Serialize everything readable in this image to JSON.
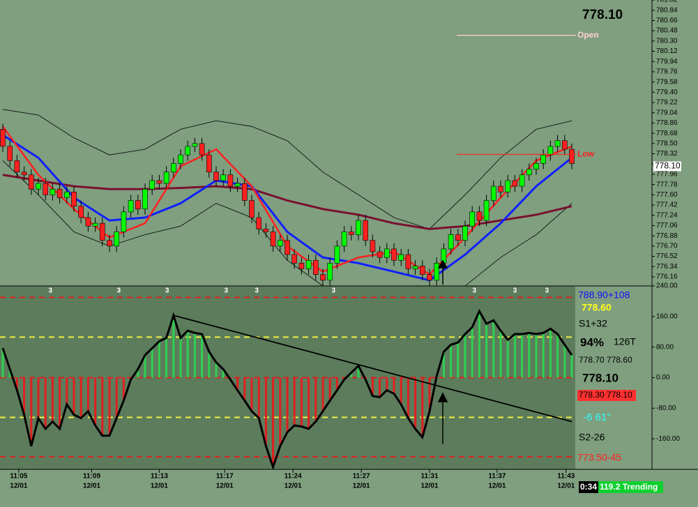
{
  "labels": {
    "headline": "778.10",
    "info": [
      "788.90+108",
      "778.60",
      "S1+32",
      "94%",
      "126T",
      "778.70 778.60",
      "778.10",
      "778.30 778.10",
      "-6  61°",
      "S2-26",
      "773.50-45"
    ],
    "status": [
      "0:34",
      "119.2 Trending"
    ]
  },
  "chart_data": [
    {
      "type": "candlestick",
      "up_color": "#00ff00",
      "down_color": "#ff2020",
      "open": [
        778.75,
        778.45,
        778.2,
        778.0,
        777.95,
        777.7,
        777.8,
        777.6,
        777.7,
        777.55,
        777.65,
        777.4,
        777.2,
        777.05,
        777.1,
        776.8,
        776.7,
        776.95,
        777.3,
        777.5,
        777.35,
        777.7,
        777.85,
        777.8,
        778.0,
        778.15,
        778.3,
        778.45,
        778.5,
        778.3,
        778.0,
        777.85,
        777.95,
        777.75,
        777.8,
        777.5,
        777.2,
        777.0,
        776.95,
        776.7,
        776.8,
        776.55,
        776.4,
        776.3,
        776.45,
        776.2,
        776.1,
        776.4,
        776.7,
        776.95,
        776.9,
        777.15,
        776.8,
        776.6,
        776.5,
        776.65,
        776.45,
        776.55,
        776.3,
        776.35,
        776.2,
        776.1,
        776.4,
        776.65,
        776.9,
        776.8,
        777.05,
        777.3,
        777.15,
        777.5,
        777.75,
        777.65,
        777.85,
        777.75,
        777.95,
        778.05,
        778.15,
        778.3,
        778.45,
        778.55,
        778.4
      ],
      "high": [
        778.85,
        778.55,
        778.3,
        778.1,
        778.05,
        777.9,
        777.9,
        777.8,
        777.8,
        777.75,
        777.75,
        777.5,
        777.3,
        777.2,
        777.2,
        776.9,
        777.05,
        777.4,
        777.6,
        777.6,
        777.8,
        777.95,
        777.95,
        778.1,
        778.25,
        778.4,
        778.55,
        778.6,
        778.6,
        778.4,
        778.1,
        778.05,
        778.05,
        777.9,
        777.9,
        777.6,
        777.3,
        777.1,
        777.05,
        776.9,
        776.9,
        776.65,
        776.5,
        776.55,
        776.55,
        776.3,
        776.5,
        776.8,
        777.05,
        777.05,
        777.25,
        777.25,
        776.9,
        776.7,
        776.75,
        776.75,
        776.65,
        776.65,
        776.45,
        776.45,
        776.3,
        776.5,
        776.75,
        777.0,
        777.0,
        777.15,
        777.4,
        777.4,
        777.6,
        777.85,
        777.85,
        777.95,
        777.95,
        778.05,
        778.15,
        778.25,
        778.4,
        778.55,
        778.65,
        778.65,
        778.5
      ],
      "low": [
        778.35,
        778.1,
        777.9,
        777.85,
        777.6,
        777.6,
        777.5,
        777.5,
        777.45,
        777.45,
        777.3,
        777.1,
        776.95,
        776.95,
        776.7,
        776.6,
        776.6,
        776.85,
        777.2,
        777.25,
        777.25,
        777.6,
        777.7,
        777.7,
        777.9,
        778.05,
        778.2,
        778.35,
        778.2,
        777.9,
        777.75,
        777.75,
        777.65,
        777.65,
        777.4,
        777.1,
        776.9,
        776.85,
        776.6,
        776.6,
        776.45,
        776.3,
        776.2,
        776.2,
        776.1,
        776.0,
        776.0,
        776.3,
        776.6,
        776.8,
        776.8,
        776.7,
        776.5,
        776.4,
        776.4,
        776.35,
        776.35,
        776.2,
        776.2,
        776.1,
        776.0,
        776.0,
        776.3,
        776.55,
        776.7,
        776.7,
        776.95,
        777.05,
        777.05,
        777.4,
        777.55,
        777.55,
        777.65,
        777.65,
        777.85,
        777.95,
        778.05,
        778.2,
        778.35,
        778.3,
        778.05
      ],
      "close": [
        778.45,
        778.2,
        778.0,
        777.95,
        777.7,
        777.8,
        777.6,
        777.7,
        777.55,
        777.65,
        777.4,
        777.2,
        777.05,
        777.1,
        776.8,
        776.7,
        776.95,
        777.3,
        777.5,
        777.35,
        777.7,
        777.85,
        777.8,
        778.0,
        778.15,
        778.3,
        778.45,
        778.5,
        778.3,
        778.0,
        777.85,
        777.95,
        777.75,
        777.8,
        777.5,
        777.2,
        777.0,
        776.95,
        776.7,
        776.8,
        776.55,
        776.4,
        776.3,
        776.45,
        776.2,
        776.1,
        776.4,
        776.7,
        776.95,
        776.9,
        777.15,
        776.8,
        776.6,
        776.5,
        776.65,
        776.45,
        776.55,
        776.3,
        776.35,
        776.2,
        776.1,
        776.4,
        776.65,
        776.9,
        776.8,
        777.05,
        777.3,
        777.15,
        777.5,
        777.75,
        777.65,
        777.85,
        777.75,
        777.95,
        778.05,
        778.15,
        778.3,
        778.45,
        778.55,
        778.4,
        778.15
      ],
      "lines": [
        {
          "color": "#000000",
          "width": 0.8,
          "x": [
            0,
            5,
            10,
            15,
            20,
            25,
            30,
            35,
            40,
            45,
            50,
            55,
            60,
            65,
            70,
            75,
            80
          ],
          "values": [
            779.1,
            779.0,
            778.6,
            778.3,
            778.4,
            778.75,
            778.9,
            778.8,
            778.55,
            778.0,
            777.6,
            777.2,
            777.0,
            777.6,
            778.25,
            778.75,
            778.9
          ]
        },
        {
          "color": "#000000",
          "width": 0.8,
          "x": [
            0,
            5,
            10,
            15,
            20,
            25,
            30,
            35,
            40,
            45,
            50,
            55,
            60,
            65,
            70,
            75,
            80
          ],
          "values": [
            778.2,
            777.6,
            776.95,
            776.7,
            776.9,
            777.05,
            777.45,
            777.2,
            776.45,
            776.0,
            776.0,
            775.9,
            775.9,
            776.0,
            776.5,
            776.9,
            777.45
          ]
        },
        {
          "color": "#7a1030",
          "width": 3,
          "x": [
            0,
            5,
            10,
            15,
            20,
            25,
            30,
            35,
            40,
            45,
            50,
            55,
            60,
            65,
            70,
            75,
            80
          ],
          "values": [
            777.95,
            777.85,
            777.75,
            777.7,
            777.7,
            777.72,
            777.75,
            777.7,
            777.5,
            777.35,
            777.25,
            777.1,
            777.0,
            777.05,
            777.15,
            777.25,
            777.4
          ]
        },
        {
          "color": "#1020ff",
          "width": 3,
          "x": [
            0,
            5,
            10,
            15,
            20,
            25,
            30,
            35,
            40,
            45,
            50,
            55,
            60,
            65,
            70,
            75,
            80
          ],
          "values": [
            778.65,
            778.25,
            777.55,
            777.15,
            777.2,
            777.45,
            777.85,
            777.75,
            776.95,
            776.5,
            776.4,
            776.25,
            776.1,
            776.55,
            777.1,
            777.75,
            778.25
          ]
        },
        {
          "color": "#ff2020",
          "width": 2.5,
          "x": [
            0,
            5,
            10,
            15,
            20,
            25,
            30,
            35,
            40,
            45,
            50,
            55,
            60,
            65,
            70,
            75,
            80
          ],
          "values": [
            778.8,
            777.95,
            777.35,
            776.85,
            777.1,
            778.1,
            778.4,
            777.75,
            776.7,
            776.25,
            776.5,
            776.6,
            776.2,
            776.85,
            777.55,
            778.2,
            778.45
          ]
        }
      ],
      "levels": [
        {
          "label": "Open",
          "value": 780.4,
          "color": "#ffd0d0"
        },
        {
          "label": "Low",
          "value": 778.31,
          "color": "#ff2020"
        }
      ],
      "last_price": {
        "value": 778.1,
        "label": "778.10"
      },
      "ylim": [
        776.0,
        781.02
      ],
      "yticks": [
        781.02,
        780.84,
        780.66,
        780.48,
        {
          "value": 780.3,
          "label": "780.30"
        },
        780.12,
        779.94,
        779.76,
        779.58,
        {
          "value": 779.4,
          "label": "779.40"
        },
        779.22,
        779.04,
        778.86,
        778.68,
        {
          "value": 778.5,
          "label": "778.50"
        },
        778.32,
        778.14,
        777.96,
        777.78,
        {
          "value": 777.6,
          "label": "777.60"
        },
        777.42,
        777.24,
        777.06,
        776.88,
        {
          "value": 776.7,
          "label": "776.70"
        },
        776.52,
        776.34,
        776.16
      ]
    },
    {
      "type": "oscillator",
      "up_color": "#30d050",
      "down_color": "#e02020",
      "line_color": "#000000",
      "values": [
        77,
        22,
        -33,
        -97,
        -179,
        -106,
        -134,
        -115,
        -134,
        -70,
        -97,
        -106,
        -88,
        -125,
        -152,
        -152,
        -106,
        -60,
        -5,
        22,
        59,
        77,
        95,
        104,
        163,
        104,
        123,
        117,
        114,
        68,
        40,
        22,
        -5,
        -33,
        -60,
        -88,
        -106,
        -179,
        -234,
        -179,
        -143,
        -125,
        -128,
        -134,
        -115,
        -88,
        -60,
        -33,
        -5,
        13,
        31,
        -5,
        -48,
        -51,
        -33,
        -42,
        -70,
        -106,
        -134,
        -156,
        -88,
        4,
        68,
        86,
        92,
        114,
        132,
        174,
        141,
        150,
        123,
        99,
        114,
        114,
        117,
        114,
        117,
        128,
        114,
        86,
        59
      ],
      "levels": [
        {
          "value": 210,
          "color": "#e02020"
        },
        {
          "value": 106,
          "color": "#f0f040"
        },
        {
          "value": 0,
          "color": "#e02020"
        },
        {
          "value": -104,
          "color": "#f0f040"
        },
        {
          "value": -207,
          "color": "#e02020"
        }
      ],
      "trendline": {
        "x": [
          24,
          80
        ],
        "values": [
          163,
          -115
        ]
      },
      "bar_notes": {
        "x": [
          6.7,
          16.3,
          23.1,
          31.4,
          35.7,
          46.5,
          66.3,
          72,
          76.5
        ],
        "labels": [
          "3",
          "3",
          "3",
          "3",
          "3",
          "3",
          "3",
          "3",
          "3"
        ]
      },
      "ylim": [
        -240,
        240
      ],
      "yticks": [
        {
          "value": 240,
          "label": "240.00"
        },
        {
          "value": 160,
          "label": "160.00"
        },
        {
          "value": 80,
          "label": "80.00"
        },
        {
          "value": 0,
          "label": "0.00"
        },
        {
          "value": -80,
          "label": "-80.00"
        },
        {
          "value": -160,
          "label": "-160.00"
        }
      ],
      "xticks": [
        {
          "value": 2.25,
          "label": "11:05"
        },
        {
          "value": 12.5,
          "label": "11:09"
        },
        {
          "value": 22,
          "label": "11:13"
        },
        {
          "value": 31.2,
          "label": "11:17"
        },
        {
          "value": 40.8,
          "label": "11:24"
        },
        {
          "value": 50.4,
          "label": "11:27"
        },
        {
          "value": 60,
          "label": "11:31"
        },
        {
          "value": 69.5,
          "label": "11:37"
        },
        {
          "value": 79.2,
          "label": "11:43"
        }
      ],
      "xtick_dates": [
        "12/01",
        "12/01",
        "12/01",
        "12/01",
        "12/01",
        "12/01",
        "12/01",
        "12/01",
        "12/01"
      ]
    }
  ]
}
